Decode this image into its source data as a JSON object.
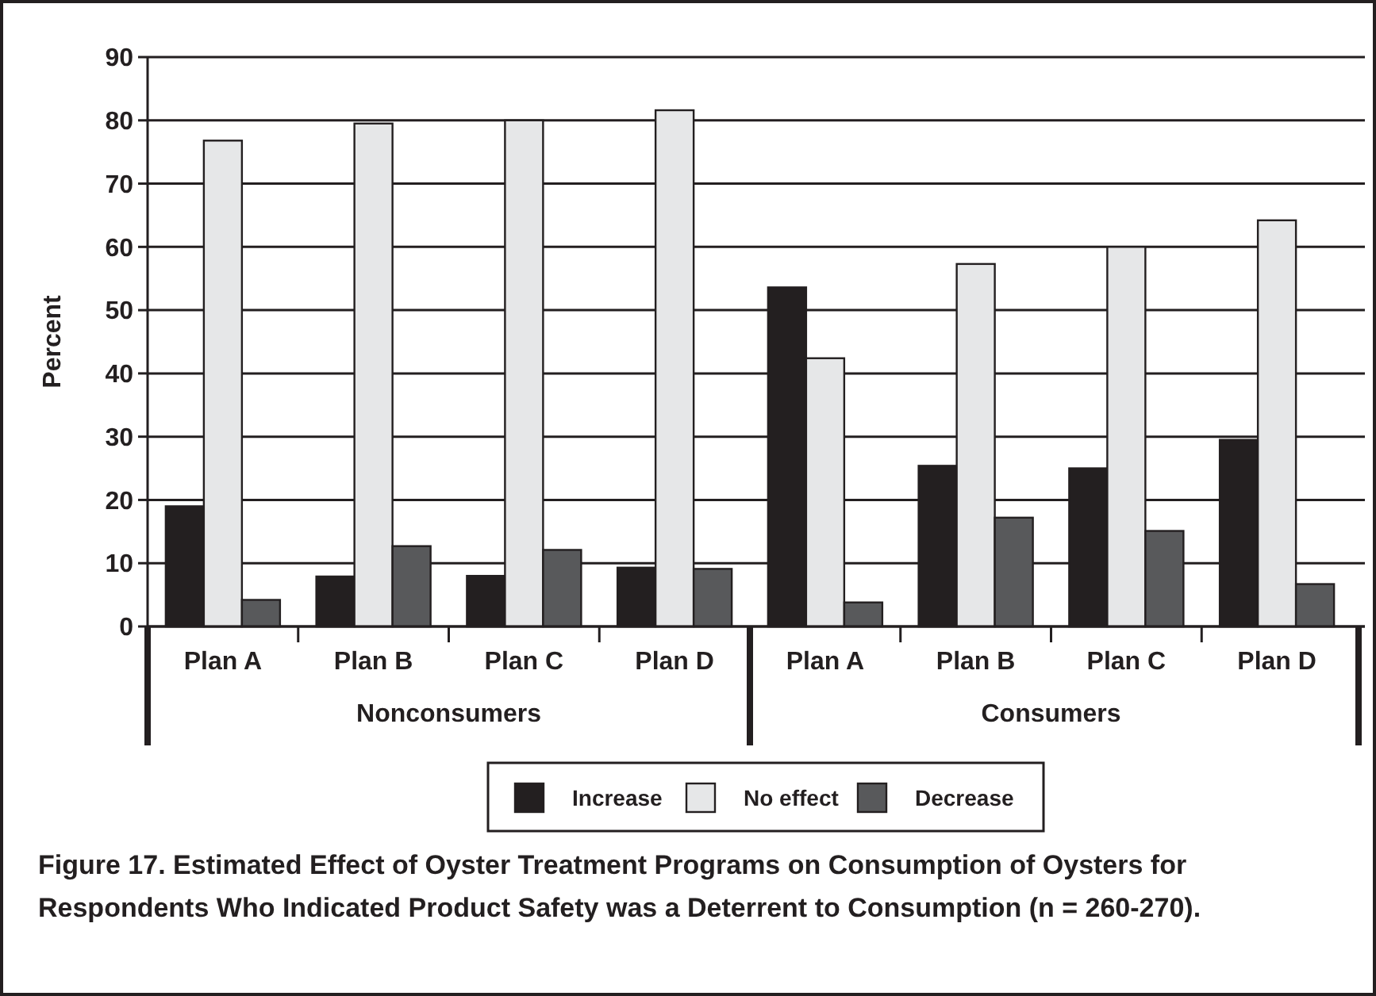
{
  "chart_data": {
    "type": "bar",
    "title": "Figure 17. Estimated Effect of Oyster Treatment Programs on Consumption of Oysters for Respondents Who Indicated Product Safety was a Deterrent to Consumption (n = 260-270).",
    "ylabel": "Percent",
    "categories": [
      "Plan A",
      "Plan B",
      "Plan C",
      "Plan D",
      "Plan A",
      "Plan B",
      "Plan C",
      "Plan D"
    ],
    "annotations": [
      "Nonconsumers",
      "Consumers"
    ],
    "series": [
      {
        "name": "Increase",
        "color": "#231f20",
        "values": [
          19,
          7.9,
          8,
          9.3,
          53.6,
          25.4,
          25,
          29.5
        ]
      },
      {
        "name": "No effect",
        "color": "#e6e7e8",
        "values": [
          76.8,
          79.5,
          80,
          81.6,
          42.4,
          57.3,
          60,
          64.2
        ]
      },
      {
        "name": "Decrease",
        "color": "#58595b",
        "values": [
          4.2,
          12.7,
          12.1,
          9.1,
          3.8,
          17.2,
          15.1,
          6.7
        ]
      }
    ],
    "ylim": [
      0,
      90
    ],
    "yticks": [
      0,
      10,
      20,
      30,
      40,
      50,
      60,
      70,
      80,
      90
    ],
    "grid": "y",
    "legend": "bottom"
  }
}
